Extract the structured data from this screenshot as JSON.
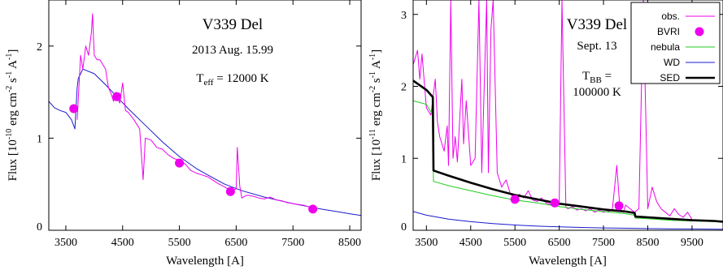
{
  "chart_data": [
    {
      "type": "line",
      "xlabel": "Wavelength [A]",
      "ylabel": "Flux [10^-10 erg cm^-2 s^-1 A^-1]",
      "ylabel_parts": [
        "Flux [10",
        "-10",
        " erg cm",
        "-2",
        " s",
        "-1",
        " A",
        "-1",
        "]"
      ],
      "xlim": [
        3200,
        8700
      ],
      "ylim": [
        0,
        2.5
      ],
      "xticks": [
        3500,
        4500,
        5500,
        6500,
        7500,
        8500
      ],
      "yticks": [
        0,
        1,
        2
      ],
      "annotations": {
        "object": "V339 Del",
        "date": "2013 Aug. 15.99",
        "teff_prefix": "T",
        "teff_sub": "eff",
        "teff_rest": " = 12000 K"
      },
      "series": [
        {
          "role": "model",
          "color": "#1a1acc",
          "x": [
            3200,
            3300,
            3400,
            3500,
            3600,
            3660,
            3700,
            3720,
            3800,
            4000,
            4200,
            4400,
            4600,
            4800,
            5000,
            5200,
            5500,
            5800,
            6000,
            6300,
            6600,
            7000,
            7500,
            8000,
            8300,
            8500,
            8700
          ],
          "y": [
            1.4,
            1.33,
            1.3,
            1.28,
            1.2,
            1.1,
            1.55,
            1.65,
            1.75,
            1.7,
            1.58,
            1.45,
            1.32,
            1.2,
            1.08,
            0.96,
            0.8,
            0.67,
            0.6,
            0.5,
            0.43,
            0.36,
            0.29,
            0.23,
            0.2,
            0.18,
            0.16
          ]
        },
        {
          "role": "observed",
          "color": "#ee00ee",
          "x": [
            3700,
            3760,
            3800,
            3850,
            3900,
            3950,
            3970,
            4000,
            4050,
            4101,
            4150,
            4200,
            4250,
            4300,
            4340,
            4380,
            4450,
            4500,
            4550,
            4600,
            4700,
            4800,
            4861,
            4900,
            5000,
            5100,
            5200,
            5300,
            5400,
            5500,
            5600,
            5700,
            5800,
            5900,
            6000,
            6100,
            6200,
            6300,
            6400,
            6500,
            6520,
            6563,
            6600,
            6650,
            6700,
            6800,
            6900,
            7000,
            7100,
            7200,
            7300,
            7400,
            7500,
            7600,
            7700,
            7800,
            7900
          ],
          "y": [
            1.2,
            1.9,
            1.75,
            2.0,
            1.9,
            2.15,
            2.35,
            1.9,
            1.85,
            1.85,
            1.8,
            1.75,
            1.55,
            1.48,
            1.4,
            1.5,
            1.38,
            1.6,
            1.3,
            1.28,
            1.2,
            1.1,
            0.55,
            1.0,
            0.98,
            0.9,
            0.88,
            0.82,
            0.78,
            0.76,
            0.72,
            0.65,
            0.62,
            0.6,
            0.58,
            0.54,
            0.5,
            0.47,
            0.43,
            0.45,
            0.9,
            0.48,
            0.35,
            0.37,
            0.38,
            0.37,
            0.35,
            0.34,
            0.36,
            0.33,
            0.32,
            0.3,
            0.29,
            0.28,
            0.27,
            0.25,
            0.24
          ]
        }
      ],
      "bvri_points": {
        "color": "#ee00ee",
        "x": [
          3640,
          4400,
          5500,
          6400,
          7850
        ],
        "y": [
          1.32,
          1.45,
          0.73,
          0.42,
          0.23
        ]
      }
    },
    {
      "type": "line",
      "xlabel": "Wavelength [A]",
      "ylabel": "Flux [10^-11 erg cm^-2 s^-1 A^-1]",
      "ylabel_parts": [
        "Flux [10",
        "-11",
        " erg cm",
        "-2",
        " s",
        "-1",
        " A",
        "-1",
        "]"
      ],
      "xlim": [
        3200,
        10200
      ],
      "ylim": [
        0,
        3.2
      ],
      "xticks": [
        3500,
        4500,
        5500,
        6500,
        7500,
        8500,
        9500
      ],
      "yticks": [
        0,
        1,
        2,
        3
      ],
      "annotations": {
        "object": "V339 Del",
        "date": "Sept. 13",
        "tbb_prefix": "T",
        "tbb_sub": "BB",
        "tbb_rest": " =",
        "tbb_value": "100000 K"
      },
      "legend": {
        "placement": "top-right",
        "entries": [
          {
            "label": "obs.",
            "color": "#ee00ee",
            "kind": "line"
          },
          {
            "label": "BVRI",
            "color": "#ee00ee",
            "kind": "marker"
          },
          {
            "label": "nebula",
            "color": "#22cc22",
            "kind": "line"
          },
          {
            "label": "WD",
            "color": "#1a1acc",
            "kind": "line"
          },
          {
            "label": "SED",
            "color": "#000000",
            "kind": "thick-line"
          }
        ]
      },
      "series": [
        {
          "name": "obs.",
          "color": "#ee00ee",
          "x": [
            3200,
            3300,
            3350,
            3400,
            3500,
            3600,
            3700,
            3750,
            3800,
            3900,
            3970,
            4000,
            4050,
            4101,
            4150,
            4200,
            4300,
            4340,
            4400,
            4500,
            4600,
            4686,
            4750,
            4861,
            4900,
            4959,
            5007,
            5100,
            5200,
            5300,
            5400,
            5500,
            5600,
            5700,
            5800,
            5900,
            6000,
            6100,
            6200,
            6300,
            6400,
            6500,
            6563,
            6650,
            6700,
            6800,
            6900,
            7000,
            7100,
            7200,
            7300,
            7400,
            7500,
            7600,
            7700,
            7800,
            7870,
            7950,
            8000,
            8100,
            8200,
            8300,
            8400,
            8500,
            8600,
            8700,
            8800,
            8900,
            9000,
            9100,
            9200,
            9300,
            9400,
            9500
          ],
          "y": [
            2.3,
            2.5,
            2.1,
            2.45,
            1.7,
            1.6,
            2.1,
            1.5,
            1.3,
            1.1,
            1.45,
            0.9,
            3.2,
            1.0,
            1.3,
            0.95,
            2.1,
            1.2,
            1.8,
            0.9,
            1.0,
            3.2,
            0.8,
            3.2,
            0.8,
            2.8,
            3.2,
            0.8,
            0.6,
            0.7,
            0.5,
            0.45,
            0.5,
            0.45,
            0.55,
            0.42,
            0.4,
            0.45,
            0.38,
            0.36,
            0.4,
            0.35,
            3.2,
            0.32,
            0.3,
            0.33,
            0.28,
            0.3,
            0.27,
            0.3,
            0.25,
            0.28,
            0.25,
            0.26,
            0.28,
            0.9,
            0.3,
            0.25,
            0.35,
            0.3,
            0.25,
            0.3,
            3.2,
            0.3,
            0.6,
            0.4,
            0.3,
            0.25,
            0.2,
            0.3,
            0.22,
            0.18,
            0.25,
            0.15
          ]
        },
        {
          "name": "nebula",
          "color": "#22cc22",
          "x": [
            3200,
            3500,
            3645,
            3660,
            4000,
            4500,
            5000,
            5500,
            6000,
            6500,
            7000,
            7500,
            8000,
            8205,
            8220,
            8500,
            9000,
            9500,
            10000,
            10200
          ],
          "y": [
            1.8,
            1.75,
            1.6,
            0.68,
            0.62,
            0.55,
            0.48,
            0.42,
            0.38,
            0.33,
            0.29,
            0.26,
            0.23,
            0.21,
            0.17,
            0.16,
            0.14,
            0.13,
            0.12,
            0.11
          ]
        },
        {
          "name": "WD",
          "color": "#1a1acc",
          "x": [
            3200,
            3500,
            4000,
            4500,
            5000,
            5500,
            6000,
            6500,
            7000,
            7500,
            8000,
            8500,
            9000,
            9500,
            10000,
            10200
          ],
          "y": [
            0.26,
            0.21,
            0.155,
            0.12,
            0.093,
            0.073,
            0.058,
            0.047,
            0.039,
            0.033,
            0.028,
            0.024,
            0.02,
            0.018,
            0.016,
            0.015
          ]
        },
        {
          "name": "SED",
          "color": "#000000",
          "x": [
            3200,
            3500,
            3645,
            3660,
            4000,
            4500,
            5000,
            5500,
            6000,
            6500,
            7000,
            7500,
            8000,
            8205,
            8220,
            8500,
            9000,
            9500,
            10000,
            10200
          ],
          "y": [
            2.08,
            1.95,
            1.85,
            0.83,
            0.76,
            0.66,
            0.57,
            0.49,
            0.43,
            0.37,
            0.33,
            0.29,
            0.26,
            0.24,
            0.19,
            0.18,
            0.16,
            0.14,
            0.13,
            0.12
          ]
        }
      ],
      "bvri_points": {
        "color": "#ee00ee",
        "x": [
          5500,
          6400,
          7850
        ],
        "y": [
          0.43,
          0.38,
          0.34
        ]
      }
    }
  ]
}
